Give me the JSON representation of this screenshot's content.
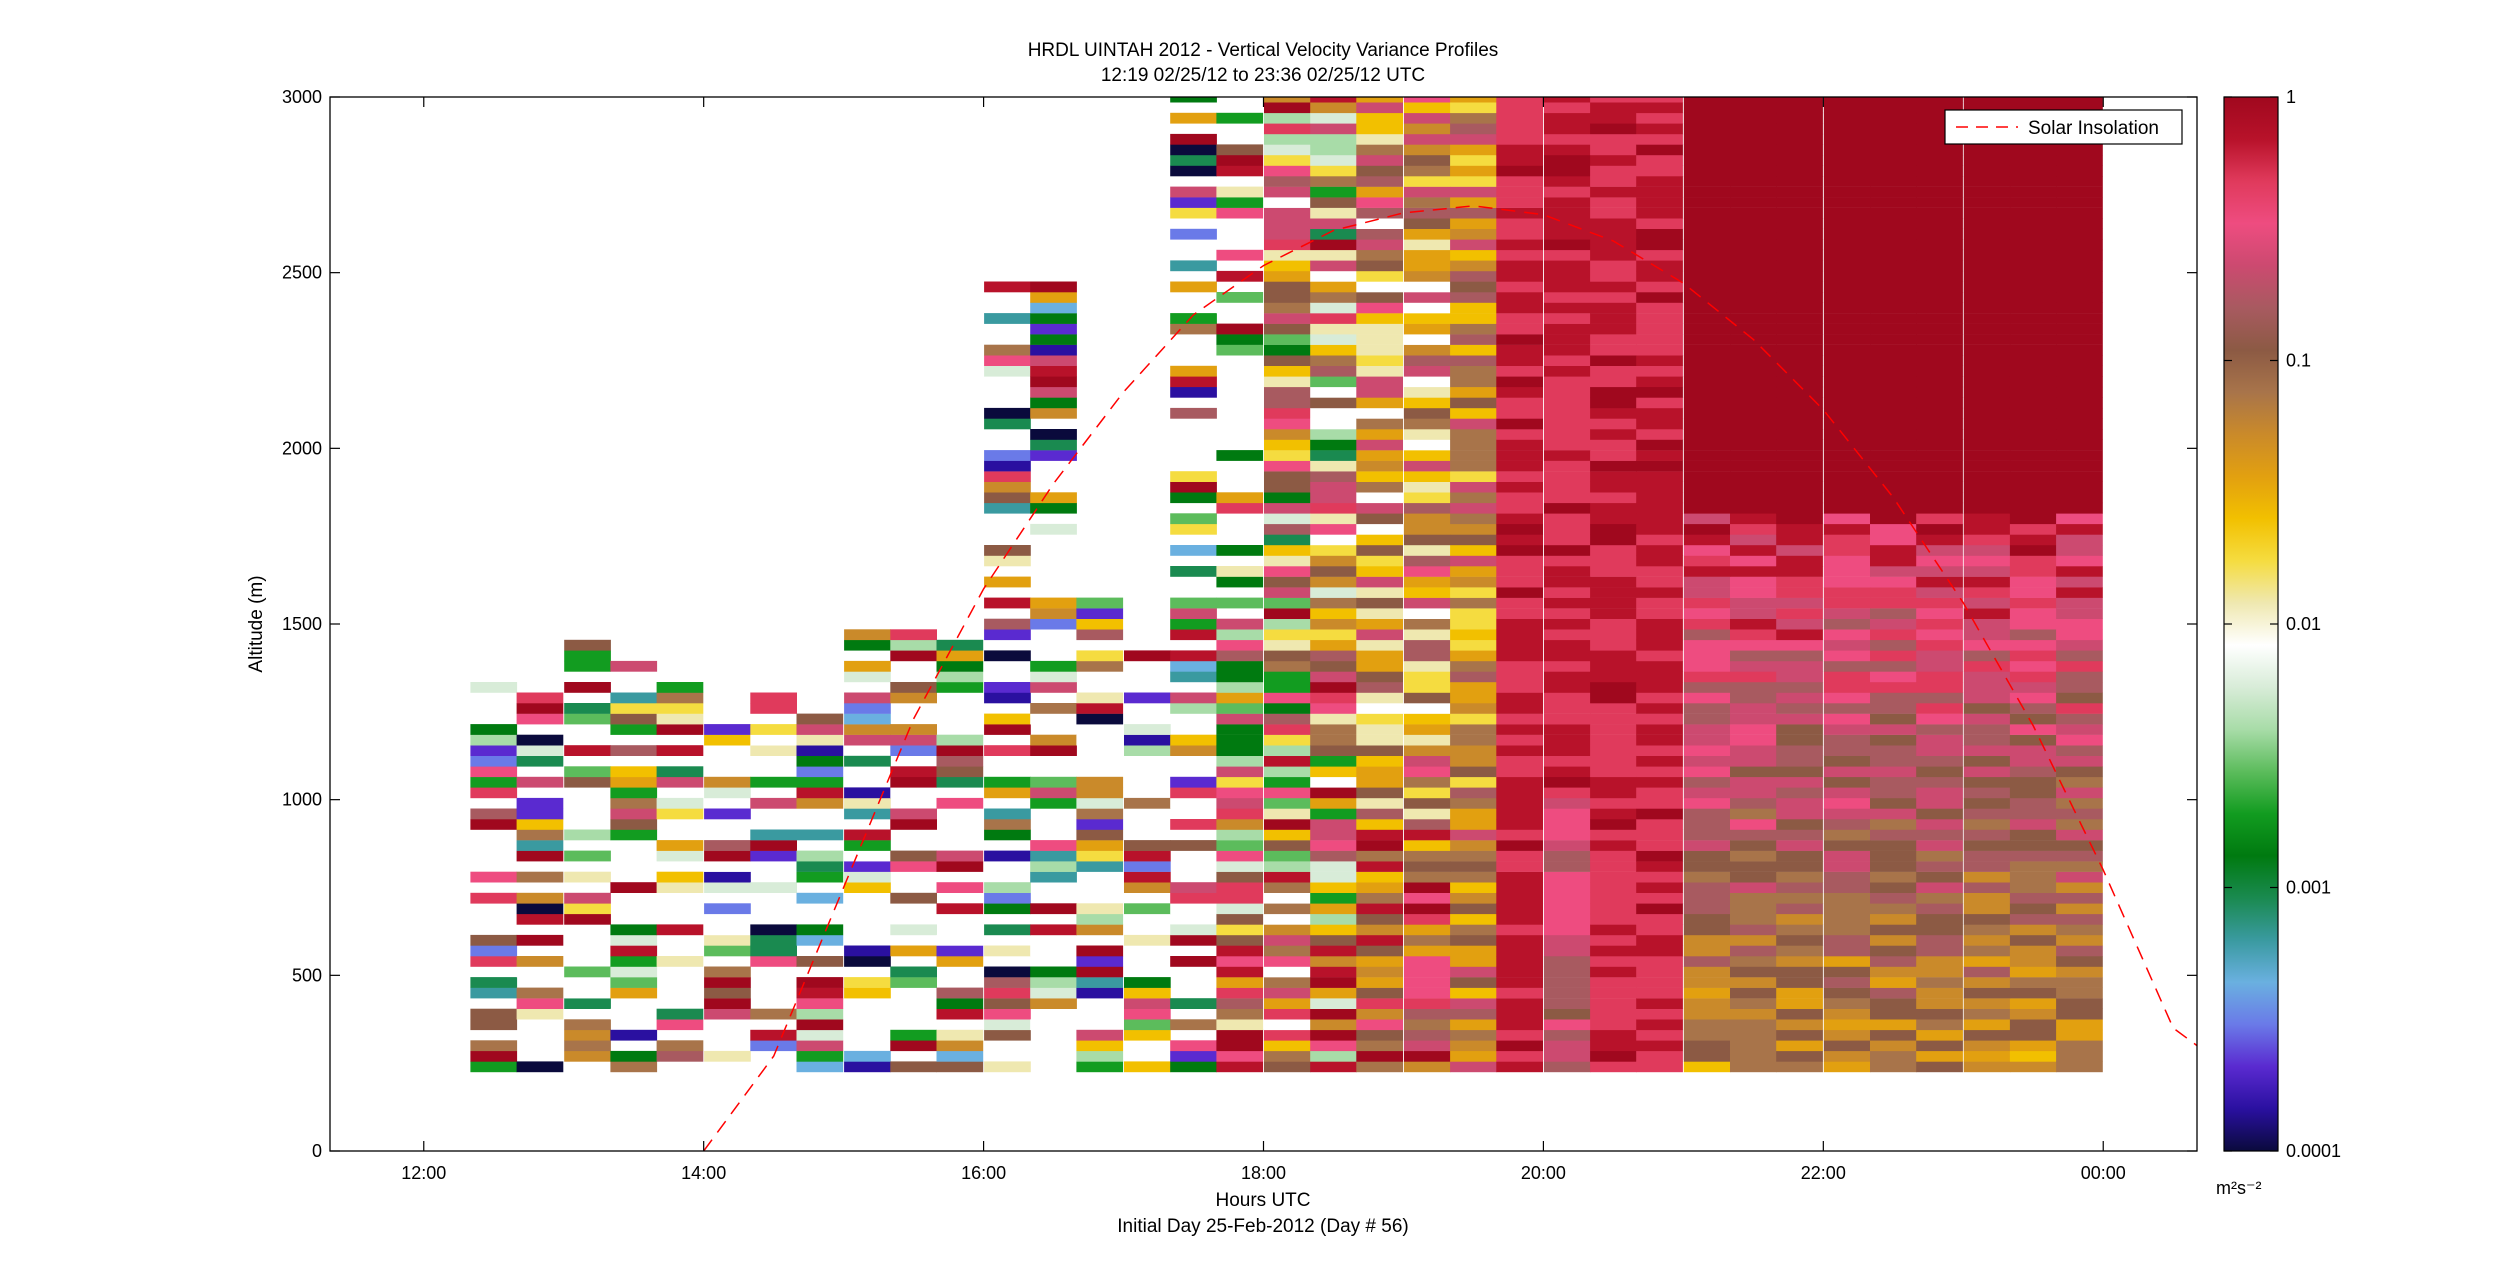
{
  "chart_data": {
    "type": "heatmap",
    "title": "HRDL UINTAH 2012 - Vertical Velocity Variance Profiles",
    "subtitle": "12:19 02/25/12 to 23:36 02/25/12  UTC",
    "xlabel": "Hours UTC",
    "xlabel2": "Initial Day 25-Feb-2012 (Day # 56)",
    "ylabel": "Altitude (m)",
    "x_ticks": [
      "12:00",
      "14:00",
      "16:00",
      "18:00",
      "20:00",
      "22:00",
      "00:00"
    ],
    "x_tick_hours": [
      12,
      14,
      16,
      18,
      20,
      22,
      24
    ],
    "x_range_hours": [
      11.33,
      24.67
    ],
    "y_ticks": [
      "0",
      "500",
      "1000",
      "1500",
      "2000",
      "2500",
      "3000"
    ],
    "y_tick_values": [
      0,
      500,
      1000,
      1500,
      2000,
      2500,
      3000
    ],
    "ylim": [
      0,
      3000
    ],
    "colorbar": {
      "scale": "log",
      "range": [
        0.0001,
        1
      ],
      "tick_labels": [
        "0.0001",
        "0.001",
        "0.01",
        "0.1",
        "1"
      ],
      "tick_values": [
        0.0001,
        0.001,
        0.01,
        0.1,
        1
      ],
      "unit_label": "m²s⁻²",
      "colors": [
        "#0a0a3c",
        "#2a10a0",
        "#5a2ad0",
        "#6a7ae8",
        "#6ab0e0",
        "#3a9aa0",
        "#1a8a50",
        "#007a10",
        "#129c20",
        "#5cbc5c",
        "#a8dca8",
        "#d8ecd8",
        "#ffffff",
        "#efe8b0",
        "#f5dc40",
        "#f2c000",
        "#e2a010",
        "#ca8a2a",
        "#a8744a",
        "#8c5a44",
        "#a85a60",
        "#cc4a70",
        "#ee4c80",
        "#e03a5c",
        "#b8122a",
        "#a0081e"
      ]
    },
    "legend": {
      "entries": [
        "Solar Insolation"
      ],
      "placement": "top-right"
    },
    "series": [
      {
        "name": "Solar Insolation",
        "style": "red dashed",
        "color": "#ff0000"
      }
    ],
    "solar_curve": {
      "hours": [
        14.0,
        14.5,
        15.0,
        15.5,
        16.0,
        16.5,
        17.0,
        17.5,
        18.0,
        18.5,
        19.0,
        19.5,
        20.0,
        20.5,
        21.0,
        21.5,
        22.0,
        22.5,
        23.0,
        23.5,
        24.0,
        24.5,
        24.67
      ],
      "altitude_m": [
        0,
        270,
        750,
        1230,
        1600,
        1900,
        2160,
        2380,
        2520,
        2620,
        2670,
        2690,
        2665,
        2590,
        2470,
        2310,
        2110,
        1860,
        1560,
        1210,
        800,
        350,
        300
      ]
    },
    "profiles": {
      "time_hours": [
        12.5,
        12.83,
        13.17,
        13.5,
        13.83,
        14.17,
        14.5,
        14.83,
        15.17,
        15.5,
        15.83,
        16.17,
        16.5,
        16.83,
        17.17,
        17.5,
        17.83,
        18.17,
        18.5,
        18.83,
        19.17,
        19.5,
        19.83,
        20.17,
        20.5,
        20.83,
        21.17,
        21.5,
        21.83,
        22.17,
        22.5,
        22.83,
        23.17,
        23.5,
        23.83
      ],
      "bottom_altitude_m": 225,
      "top_altitude_m": [
        1400,
        1350,
        1430,
        1400,
        1370,
        1330,
        1320,
        1220,
        1480,
        1480,
        1450,
        2470,
        2470,
        1600,
        1420,
        3000,
        3000,
        3000,
        3000,
        3000,
        3000,
        3000,
        3000,
        3000,
        3000,
        3000,
        3000,
        3000,
        3000,
        3000,
        3000,
        3000,
        3000,
        3000,
        3000
      ],
      "low_variance_profiles": "12:30 to 17:30, sparse, values mostly 0.0001 to 0.01",
      "mixing_onset": "~18:00",
      "max_variance_period": "19:45 to 21:00, ~1 m²s⁻² throughout column",
      "late_day": "21:00 to 23:36, 0.03 to 1 m²s⁻²"
    }
  }
}
